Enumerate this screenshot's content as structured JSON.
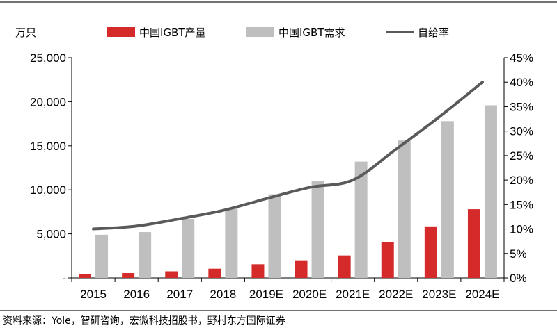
{
  "chart_data": {
    "type": "bar",
    "left_unit": "万只",
    "categories": [
      "2015",
      "2016",
      "2017",
      "2018",
      "2019E",
      "2020E",
      "2021E",
      "2022E",
      "2023E",
      "2024E"
    ],
    "series": [
      {
        "name": "中国IGBT产量",
        "type": "bar",
        "axis": "left",
        "color": "#d42a2a",
        "values": [
          450,
          550,
          750,
          1050,
          1550,
          2000,
          2550,
          4100,
          5850,
          7800
        ]
      },
      {
        "name": "中国IGBT需求",
        "type": "bar",
        "axis": "left",
        "color": "#bfbfbf",
        "values": [
          4900,
          5200,
          6700,
          7900,
          9500,
          11000,
          13200,
          15600,
          17800,
          19600
        ]
      },
      {
        "name": "自给率",
        "type": "line",
        "axis": "right",
        "color": "#5a5a5a",
        "values": [
          0.1,
          0.106,
          0.121,
          0.138,
          0.162,
          0.185,
          0.2,
          0.263,
          0.329,
          0.4
        ]
      }
    ],
    "left_axis": {
      "min": 0,
      "max": 25000,
      "ticks": [
        "-",
        "5,000",
        "10,000",
        "15,000",
        "20,000",
        "25,000"
      ]
    },
    "right_axis": {
      "min": 0,
      "max": 0.45,
      "ticks": [
        "0%",
        "5%",
        "10%",
        "15%",
        "20%",
        "25%",
        "30%",
        "35%",
        "40%",
        "45%"
      ]
    },
    "legend_position": "top",
    "grid": false
  },
  "source": "资料来源：Yole，智研咨询，宏微科技招股书，野村东方国际证券"
}
